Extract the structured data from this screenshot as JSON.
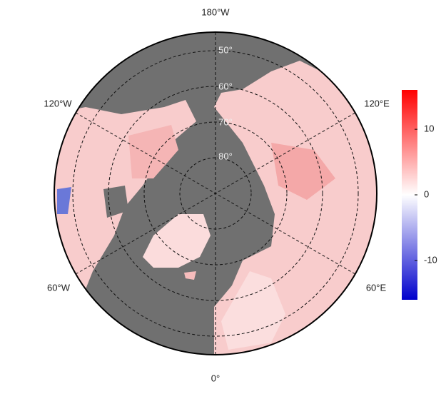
{
  "map": {
    "lon_labels": [
      "180°W",
      "120°E",
      "60°E",
      "0°",
      "60°W",
      "120°W"
    ],
    "lat_labels": [
      "50°",
      "60°",
      "70°",
      "80°"
    ]
  },
  "colorbar": {
    "lim": [
      -16,
      16
    ],
    "ticks": [
      -10,
      0,
      10
    ]
  }
}
